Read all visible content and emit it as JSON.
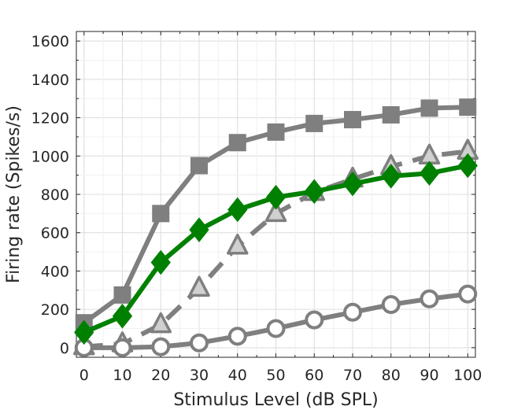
{
  "chart_data": {
    "type": "line",
    "title": "",
    "xlabel": "Stimulus Level (dB SPL)",
    "ylabel": "Firing rate (Spikes/s)",
    "xlim": [
      -2,
      102
    ],
    "ylim": [
      -50,
      1650
    ],
    "x": [
      0,
      10,
      20,
      30,
      40,
      50,
      60,
      70,
      80,
      90,
      100
    ],
    "xticks": [
      0,
      10,
      20,
      30,
      40,
      50,
      60,
      70,
      80,
      90,
      100
    ],
    "xtick_labels": [
      "0",
      "10",
      "20",
      "30",
      "40",
      "50",
      "60",
      "70",
      "80",
      "90",
      "100"
    ],
    "yticks": [
      0,
      200,
      400,
      600,
      800,
      1000,
      1200,
      1400,
      1600
    ],
    "ytick_labels": [
      "0",
      "200",
      "400",
      "600",
      "800",
      "1000",
      "1200",
      "1400",
      "1600"
    ],
    "grid": true,
    "series": [
      {
        "name": "square",
        "marker": "square",
        "line": "solid",
        "color": "#7f7f7f",
        "values": [
          130,
          275,
          700,
          950,
          1070,
          1125,
          1170,
          1190,
          1215,
          1250,
          1255
        ]
      },
      {
        "name": "triangle",
        "marker": "triangle",
        "line": "dashed",
        "color": "#7f7f7f",
        "values": [
          5,
          20,
          120,
          310,
          530,
          700,
          810,
          880,
          945,
          1000,
          1025
        ]
      },
      {
        "name": "circle",
        "marker": "circle",
        "line": "solid",
        "color": "#7f7f7f",
        "values": [
          0,
          0,
          5,
          25,
          60,
          100,
          145,
          185,
          225,
          255,
          280
        ]
      },
      {
        "name": "diamond",
        "marker": "diamond",
        "line": "solid",
        "color": "#008000",
        "values": [
          80,
          165,
          445,
          615,
          720,
          785,
          815,
          855,
          895,
          910,
          950
        ]
      }
    ]
  }
}
